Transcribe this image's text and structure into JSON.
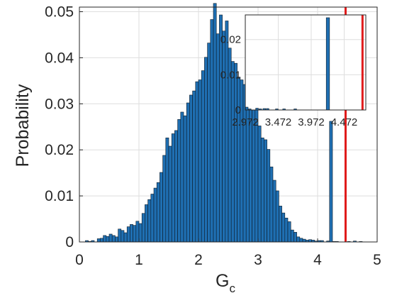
{
  "chart_data": [
    {
      "type": "bar",
      "role": "main histogram",
      "xlabel": "G",
      "xlabel_subscript": "c",
      "ylabel": "Probability",
      "xlim": [
        0,
        5
      ],
      "ylim": [
        0,
        0.051
      ],
      "grid": true,
      "bar_color": "#1f6fb2",
      "edge_color": "#0d1a26",
      "x_ticks": [
        0,
        1,
        2,
        3,
        4,
        5
      ],
      "x_tick_labels": [
        "0",
        "1",
        "2",
        "3",
        "4",
        "5"
      ],
      "y_ticks": [
        0,
        0.01,
        0.02,
        0.03,
        0.04,
        0.05
      ],
      "y_tick_labels": [
        "0",
        "0.01",
        "0.02",
        "0.03",
        "0.04",
        "0.05"
      ],
      "bin_width": 0.05,
      "bin_start": 0.1,
      "values": [
        0.0003,
        0.0001,
        0.0003,
        0.0,
        0.0007,
        0.0008,
        0.0014,
        0.0012,
        0.0017,
        0.0014,
        0.0011,
        0.0028,
        0.0025,
        0.002,
        0.0033,
        0.0038,
        0.0036,
        0.0045,
        0.004,
        0.0062,
        0.0081,
        0.0092,
        0.0104,
        0.0117,
        0.0129,
        0.0151,
        0.0188,
        0.0226,
        0.0208,
        0.0235,
        0.0242,
        0.0266,
        0.0282,
        0.0274,
        0.0302,
        0.0319,
        0.0328,
        0.0348,
        0.0352,
        0.0372,
        0.0401,
        0.0432,
        0.0483,
        0.0518,
        0.0452,
        0.0493,
        0.0458,
        0.048,
        0.0421,
        0.0392,
        0.0388,
        0.0358,
        0.0352,
        0.0342,
        0.0338,
        0.0308,
        0.0332,
        0.0291,
        0.0252,
        0.0226,
        0.0222,
        0.0201,
        0.0163,
        0.0134,
        0.0111,
        0.0078,
        0.0063,
        0.0052,
        0.0044,
        0.0026,
        0.0021,
        0.0011,
        0.0008,
        0.0006,
        0.0004,
        0.0005,
        0.0004,
        0.0002,
        0.0003,
        0.0003,
        0.0,
        0.0002,
        0.0,
        0.0001,
        0.0001,
        0.0,
        0.0,
        0.0,
        0.0001,
        0.0,
        0.0002,
        0.0,
        0.0001,
        0.0,
        0.0,
        0.0,
        0.0,
        0.0,
        0.0,
        0.0,
        0.0,
        0.0,
        0.0,
        0.0
      ],
      "spike_bin": {
        "x": 4.2,
        "width": 0.05,
        "value": 0.0262
      },
      "vertical_line": {
        "x": 4.47,
        "color": "#e01b1b"
      }
    },
    {
      "type": "bar",
      "role": "inset zoom",
      "xlim": [
        2.972,
        4.8
      ],
      "ylim": [
        0,
        0.027
      ],
      "x_ticks": [
        2.972,
        3.472,
        3.972,
        4.472
      ],
      "x_tick_labels": [
        "2.972",
        "3.472",
        "3.972",
        "4.472"
      ],
      "y_ticks": [
        0,
        0.01,
        0.02
      ],
      "y_tick_labels": [
        "0",
        "0.01",
        "0.02"
      ],
      "grid": true,
      "bars": [
        {
          "x": 2.975,
          "width": 0.04,
          "value": 0.0008
        },
        {
          "x": 3.02,
          "width": 0.04,
          "value": 0.0003
        },
        {
          "x": 3.13,
          "width": 0.04,
          "value": 0.0005
        },
        {
          "x": 3.18,
          "width": 0.04,
          "value": 0.0003
        },
        {
          "x": 3.24,
          "width": 0.04,
          "value": 0.0004
        },
        {
          "x": 3.29,
          "width": 0.04,
          "value": 0.0004
        },
        {
          "x": 3.43,
          "width": 0.04,
          "value": 0.0003
        },
        {
          "x": 3.54,
          "width": 0.04,
          "value": 0.0003
        },
        {
          "x": 3.71,
          "width": 0.04,
          "value": 0.0003
        },
        {
          "x": 4.2,
          "width": 0.05,
          "value": 0.0262
        }
      ],
      "vertical_line": {
        "x": 4.75,
        "color": "#e01b1b"
      }
    }
  ]
}
